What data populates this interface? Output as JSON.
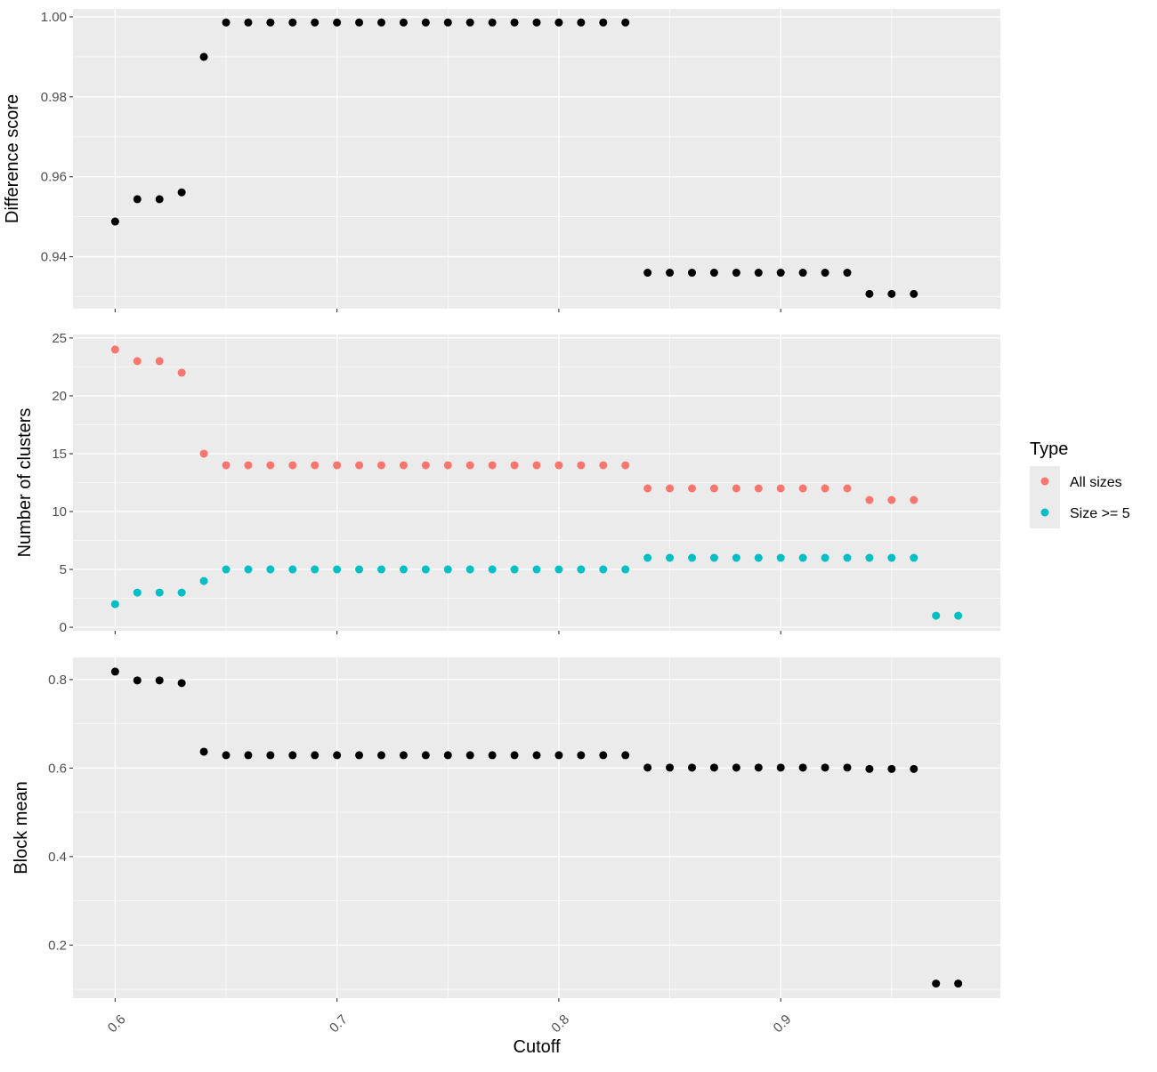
{
  "chart_data": [
    {
      "type": "scatter",
      "panel": "top",
      "ylabel": "Difference score",
      "xlim": [
        0.581,
        0.999
      ],
      "ylim": [
        0.927,
        1.002
      ],
      "yticks": [
        0.94,
        0.96,
        0.98,
        1.0
      ],
      "ytick_labels": [
        "0.94",
        "0.96",
        "0.98",
        "1.00"
      ],
      "point_color": "#000000",
      "series": [
        {
          "x": [
            0.6,
            0.61,
            0.62,
            0.63,
            0.64,
            0.65,
            0.66,
            0.67,
            0.68,
            0.69,
            0.7,
            0.71,
            0.72,
            0.73,
            0.74,
            0.75,
            0.76,
            0.77,
            0.78,
            0.79,
            0.8,
            0.81,
            0.82,
            0.83,
            0.84,
            0.85,
            0.86,
            0.87,
            0.88,
            0.89,
            0.9,
            0.91,
            0.92,
            0.93,
            0.94,
            0.95,
            0.96
          ],
          "y": [
            0.9488,
            0.9544,
            0.9544,
            0.9561,
            0.99,
            0.9986,
            0.9986,
            0.9986,
            0.9986,
            0.9986,
            0.9986,
            0.9986,
            0.9986,
            0.9986,
            0.9986,
            0.9986,
            0.9986,
            0.9986,
            0.9986,
            0.9986,
            0.9986,
            0.9986,
            0.9986,
            0.9986,
            0.936,
            0.936,
            0.936,
            0.936,
            0.936,
            0.936,
            0.936,
            0.936,
            0.936,
            0.936,
            0.9307,
            0.9307,
            0.9307
          ]
        }
      ]
    },
    {
      "type": "scatter",
      "panel": "middle",
      "ylabel": "Number of clusters",
      "xlim": [
        0.581,
        0.999
      ],
      "ylim": [
        -0.3,
        25.3
      ],
      "yticks": [
        0,
        5,
        10,
        15,
        20,
        25
      ],
      "ytick_labels": [
        "0",
        "5",
        "10",
        "15",
        "20",
        "25"
      ],
      "series": [
        {
          "name": "All sizes",
          "color": "#F8766D",
          "x": [
            0.6,
            0.61,
            0.62,
            0.63,
            0.64,
            0.65,
            0.66,
            0.67,
            0.68,
            0.69,
            0.7,
            0.71,
            0.72,
            0.73,
            0.74,
            0.75,
            0.76,
            0.77,
            0.78,
            0.79,
            0.8,
            0.81,
            0.82,
            0.83,
            0.84,
            0.85,
            0.86,
            0.87,
            0.88,
            0.89,
            0.9,
            0.91,
            0.92,
            0.93,
            0.94,
            0.95,
            0.96
          ],
          "y": [
            24,
            23,
            23,
            22,
            15,
            14,
            14,
            14,
            14,
            14,
            14,
            14,
            14,
            14,
            14,
            14,
            14,
            14,
            14,
            14,
            14,
            14,
            14,
            14,
            12,
            12,
            12,
            12,
            12,
            12,
            12,
            12,
            12,
            12,
            11,
            11,
            11
          ]
        },
        {
          "name": "Size >= 5",
          "color": "#00BFC4",
          "x": [
            0.6,
            0.61,
            0.62,
            0.63,
            0.64,
            0.65,
            0.66,
            0.67,
            0.68,
            0.69,
            0.7,
            0.71,
            0.72,
            0.73,
            0.74,
            0.75,
            0.76,
            0.77,
            0.78,
            0.79,
            0.8,
            0.81,
            0.82,
            0.83,
            0.84,
            0.85,
            0.86,
            0.87,
            0.88,
            0.89,
            0.9,
            0.91,
            0.92,
            0.93,
            0.94,
            0.95,
            0.96,
            0.97,
            0.98
          ],
          "y": [
            2,
            3,
            3,
            3,
            4,
            5,
            5,
            5,
            5,
            5,
            5,
            5,
            5,
            5,
            5,
            5,
            5,
            5,
            5,
            5,
            5,
            5,
            5,
            5,
            6,
            6,
            6,
            6,
            6,
            6,
            6,
            6,
            6,
            6,
            6,
            6,
            6,
            1,
            1
          ]
        }
      ]
    },
    {
      "type": "scatter",
      "panel": "bottom",
      "ylabel": "Block mean",
      "xlabel": "Cutoff",
      "xlim": [
        0.581,
        0.999
      ],
      "ylim": [
        0.08,
        0.85
      ],
      "yticks": [
        0.2,
        0.4,
        0.6,
        0.8
      ],
      "ytick_labels": [
        "0.2",
        "0.4",
        "0.6",
        "0.8"
      ],
      "xticks": [
        0.6,
        0.7,
        0.8,
        0.9
      ],
      "xtick_labels": [
        "0.6",
        "0.7",
        "0.8",
        "0.9"
      ],
      "point_color": "#000000",
      "series": [
        {
          "x": [
            0.6,
            0.61,
            0.62,
            0.63,
            0.64,
            0.65,
            0.66,
            0.67,
            0.68,
            0.69,
            0.7,
            0.71,
            0.72,
            0.73,
            0.74,
            0.75,
            0.76,
            0.77,
            0.78,
            0.79,
            0.8,
            0.81,
            0.82,
            0.83,
            0.84,
            0.85,
            0.86,
            0.87,
            0.88,
            0.89,
            0.9,
            0.91,
            0.92,
            0.93,
            0.94,
            0.95,
            0.96,
            0.97,
            0.98
          ],
          "y": [
            0.818,
            0.798,
            0.798,
            0.792,
            0.637,
            0.629,
            0.629,
            0.629,
            0.629,
            0.629,
            0.629,
            0.629,
            0.629,
            0.629,
            0.629,
            0.629,
            0.629,
            0.629,
            0.629,
            0.629,
            0.629,
            0.629,
            0.629,
            0.629,
            0.601,
            0.601,
            0.601,
            0.601,
            0.601,
            0.601,
            0.601,
            0.601,
            0.601,
            0.601,
            0.598,
            0.598,
            0.598,
            0.113,
            0.113
          ]
        }
      ]
    }
  ],
  "legend": {
    "title": "Type",
    "items": [
      {
        "label": "All sizes",
        "color": "#F8766D"
      },
      {
        "label": "Size >= 5",
        "color": "#00BFC4"
      }
    ]
  },
  "colors": {
    "panel_background": "#EBEBEB",
    "grid": "#FFFFFF",
    "tick": "#333333"
  }
}
